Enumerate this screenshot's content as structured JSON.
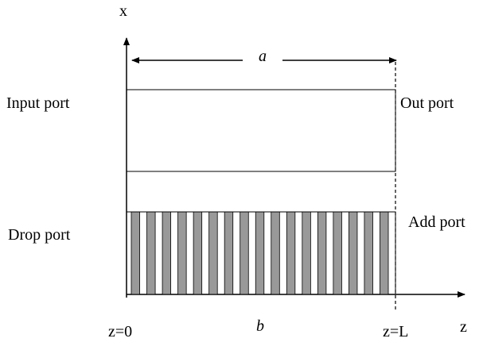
{
  "axes": {
    "x_label": "x",
    "z_label": "z"
  },
  "ports": {
    "input": "Input port",
    "output": "Out port",
    "drop": "Drop port",
    "add": "Add port"
  },
  "dimensions": {
    "a": "a",
    "b": "b"
  },
  "positions": {
    "start": "z=0",
    "end": "z=L"
  },
  "grating": {
    "bar_count": 17,
    "bar_color": "#999999"
  }
}
